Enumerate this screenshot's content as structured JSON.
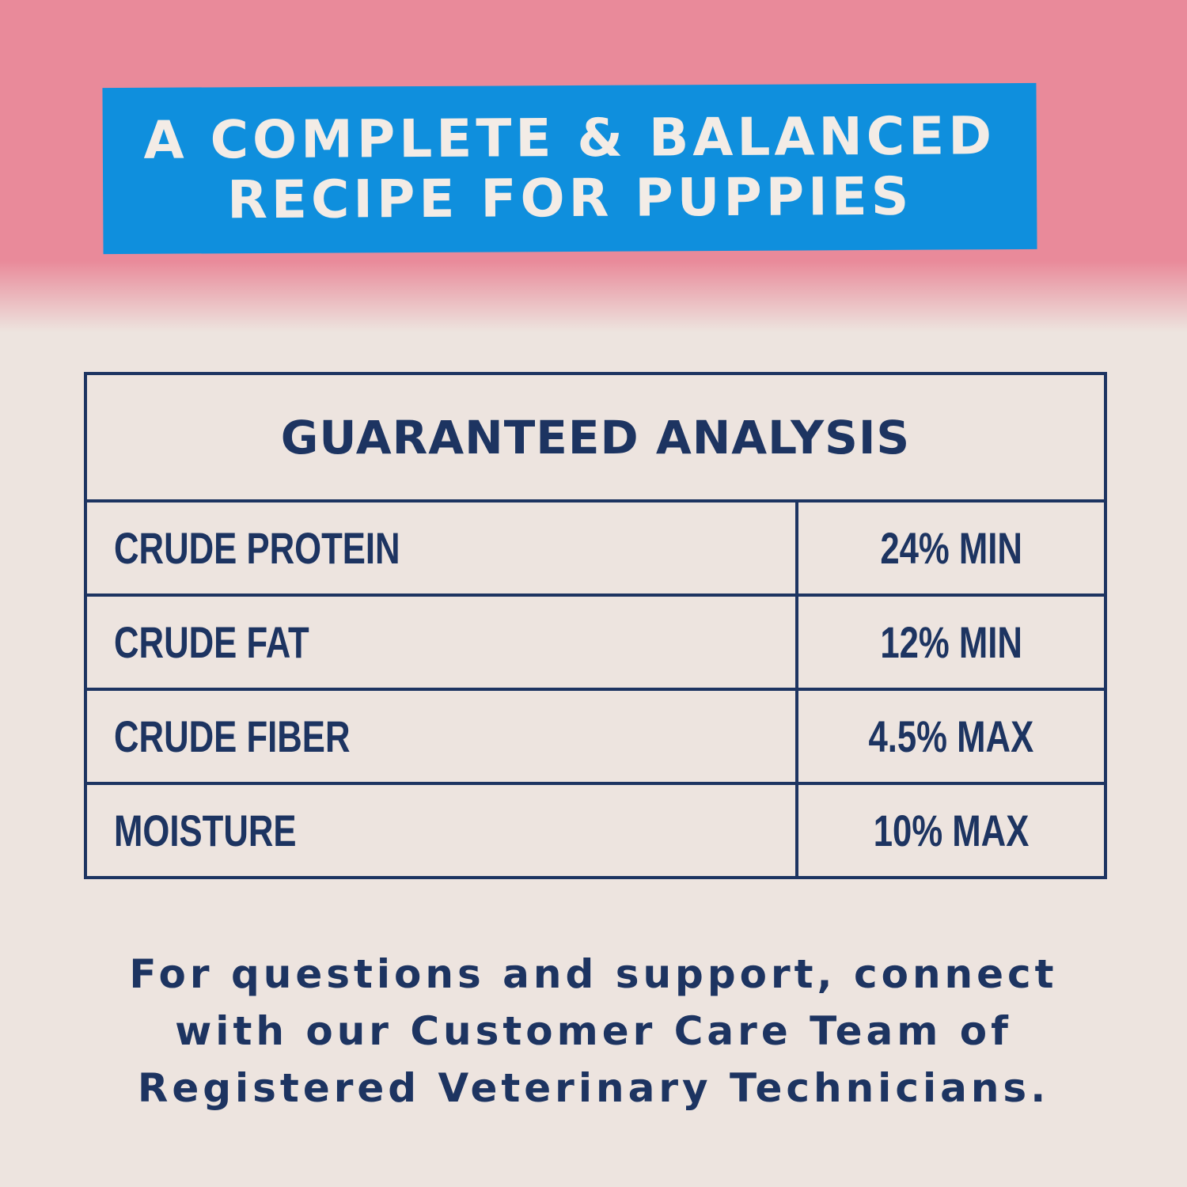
{
  "banner": {
    "line1": "A COMPLETE & BALANCED",
    "line2": "RECIPE FOR PUPPIES"
  },
  "table": {
    "title": "GUARANTEED ANALYSIS",
    "rows": [
      {
        "label": "CRUDE PROTEIN",
        "value": "24% MIN"
      },
      {
        "label": "CRUDE FAT",
        "value": "12% MIN"
      },
      {
        "label": "CRUDE FIBER",
        "value": "4.5% MAX"
      },
      {
        "label": "MOISTURE",
        "value": "10% MAX"
      }
    ]
  },
  "footer": {
    "line1": "For questions and support, connect",
    "line2": "with our Customer Care Team of",
    "line3": "Registered Veterinary Technicians."
  },
  "colors": {
    "pink": "#e98a9a",
    "blue": "#0f8fdd",
    "navy": "#1d3461",
    "background": "#ede4df"
  }
}
